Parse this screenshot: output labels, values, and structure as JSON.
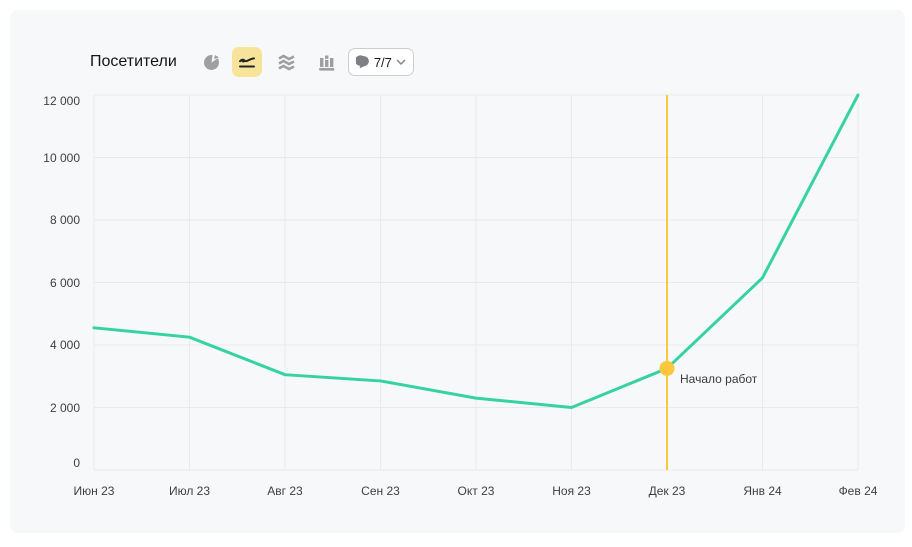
{
  "header": {
    "title": "Посетители",
    "chart_type_buttons": [
      {
        "name": "pie",
        "selected": false
      },
      {
        "name": "line",
        "selected": true
      },
      {
        "name": "stacked-area",
        "selected": false
      },
      {
        "name": "columns",
        "selected": false
      }
    ],
    "annotations_button": {
      "count_label": "7/7"
    }
  },
  "chart_data": {
    "type": "line",
    "title": "Посетители",
    "categories": [
      "Июн 23",
      "Июл 23",
      "Авг 23",
      "Сен 23",
      "Окт 23",
      "Ноя 23",
      "Дек 23",
      "Янв 24",
      "Фев 24"
    ],
    "values": [
      4550,
      4250,
      3050,
      2850,
      2300,
      2000,
      3250,
      6150,
      12000
    ],
    "ylim": [
      0,
      12000
    ],
    "yticks": [
      0,
      2000,
      4000,
      6000,
      8000,
      10000,
      12000
    ],
    "ytick_labels": [
      "0",
      "2 000",
      "4 000",
      "6 000",
      "8 000",
      "10 000",
      "12 000"
    ],
    "grid": true,
    "legend": false,
    "line_color": "#36d2a1",
    "grid_color": "#e9eaec",
    "annotation": {
      "label": "Начало работ",
      "category": "Дек 23",
      "category_index": 6,
      "value": 3250,
      "color": "#fcc73c"
    }
  }
}
